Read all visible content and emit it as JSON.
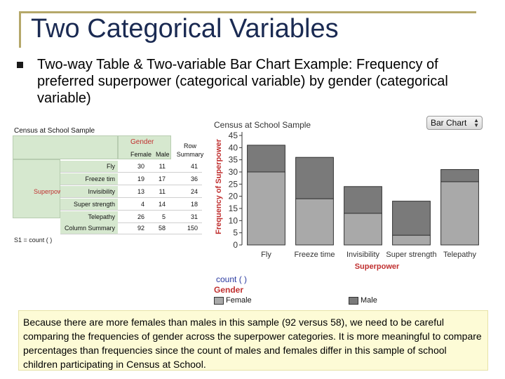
{
  "slide": {
    "title": "Two Categorical Variables",
    "bullet": "Two-way Table & Two-variable Bar Chart Example: Frequency of preferred superpower (categorical variable) by gender (categorical variable)"
  },
  "table": {
    "caption": "Census at School Sample",
    "gender_header": "Gender",
    "col_female": "Female",
    "col_male": "Male",
    "row_summary": "Row Summary",
    "superpower_label": "Superpower",
    "rows": [
      {
        "label": "Fly",
        "female": "30",
        "male": "11",
        "total": "41"
      },
      {
        "label": "Freeze tim",
        "female": "19",
        "male": "17",
        "total": "36"
      },
      {
        "label": "Invisibility",
        "female": "13",
        "male": "11",
        "total": "24"
      },
      {
        "label": "Super strength",
        "female": "4",
        "male": "14",
        "total": "18"
      },
      {
        "label": "Telepathy",
        "female": "26",
        "male": "5",
        "total": "31"
      }
    ],
    "column_summary": {
      "label": "Column Summary",
      "female": "92",
      "male": "58",
      "total": "150"
    },
    "s1_line": "S1 = count ( )"
  },
  "chart_controls": {
    "title": "Census at School Sample",
    "select_value": "Bar Chart"
  },
  "chart_data": {
    "type": "bar",
    "stacked": true,
    "categories": [
      "Fly",
      "Freeze time",
      "Invisibility",
      "Super strength",
      "Telepathy"
    ],
    "series": [
      {
        "name": "Female",
        "values": [
          30,
          19,
          13,
          4,
          26
        ],
        "color": "#a9a9a9"
      },
      {
        "name": "Male",
        "values": [
          11,
          17,
          11,
          14,
          5
        ],
        "color": "#7a7a7a"
      }
    ],
    "xlabel": "Superpower",
    "ylabel": "Frequency of Superpower",
    "ylim": [
      0,
      45
    ],
    "yticks": [
      0,
      5,
      10,
      15,
      20,
      25,
      30,
      35,
      40,
      45
    ],
    "grid": false,
    "legend_position": "bottom-left"
  },
  "legend": {
    "count_label": "count ( )",
    "title": "Gender",
    "female": "Female",
    "male": "Male"
  },
  "note": "Because there are more females than males in this sample (92 versus 58), we need to be careful comparing the frequencies of gender across the superpower categories.  It is more meaningful to compare percentages than frequencies since the count of males and females differ in this sample of school children participating in Census at School."
}
